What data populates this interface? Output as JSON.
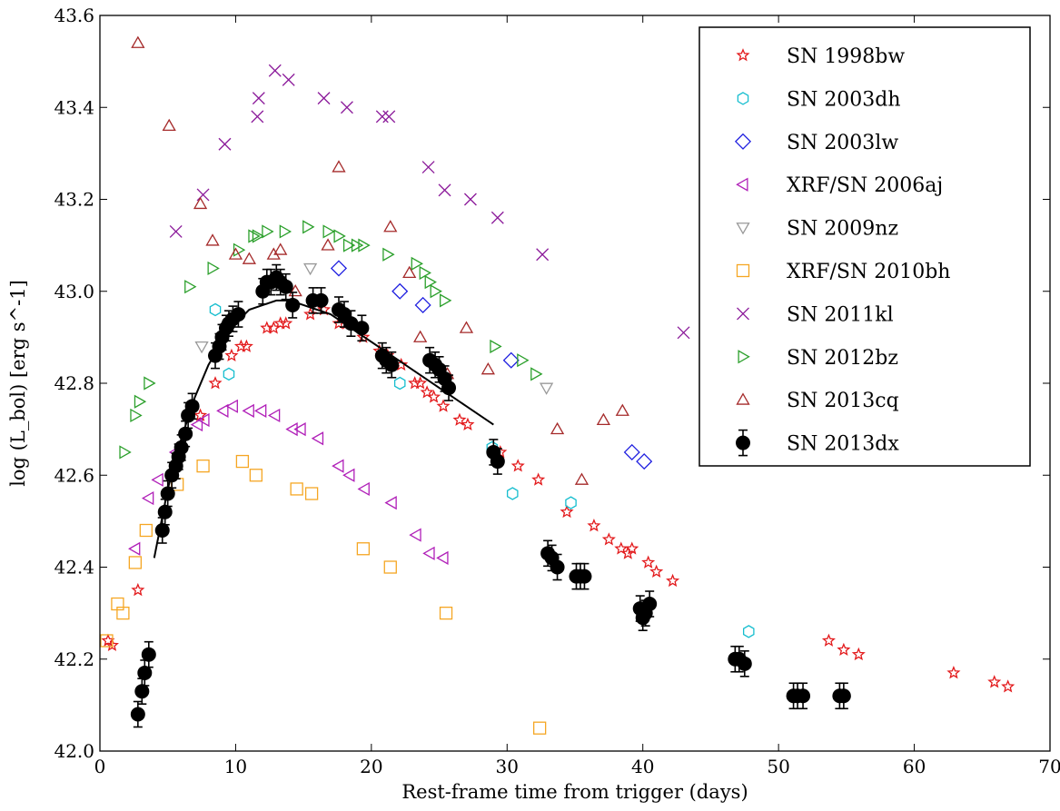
{
  "chart_data": {
    "type": "scatter",
    "title": "",
    "xlabel": "Rest-frame time from trigger (days)",
    "ylabel": "log (L_bol) [erg s^-1]",
    "xlim": [
      0,
      70
    ],
    "ylim": [
      42.0,
      43.6
    ],
    "xticks": [
      "0",
      "10",
      "20",
      "30",
      "40",
      "50",
      "60",
      "70"
    ],
    "yticks": [
      "42.0",
      "42.2",
      "42.4",
      "42.6",
      "42.8",
      "43.0",
      "43.2",
      "43.4",
      "43.6"
    ],
    "grid": false,
    "legend_position": "top-right",
    "series": [
      {
        "name": "SN 1998bw",
        "marker": "star",
        "color": "#e31a1c",
        "points": [
          [
            0.6,
            42.24
          ],
          [
            0.9,
            42.23
          ],
          [
            2.8,
            42.35
          ],
          [
            7.4,
            42.73
          ],
          [
            8.5,
            42.8
          ],
          [
            9.7,
            42.86
          ],
          [
            10.4,
            42.88
          ],
          [
            10.8,
            42.88
          ],
          [
            12.3,
            42.92
          ],
          [
            12.8,
            42.92
          ],
          [
            13.3,
            42.93
          ],
          [
            13.7,
            42.93
          ],
          [
            15.5,
            42.95
          ],
          [
            16.5,
            42.96
          ],
          [
            17.6,
            42.93
          ],
          [
            18.2,
            42.93
          ],
          [
            19.4,
            42.9
          ],
          [
            20.6,
            42.87
          ],
          [
            21.2,
            42.86
          ],
          [
            22.2,
            42.84
          ],
          [
            23.2,
            42.8
          ],
          [
            23.6,
            42.8
          ],
          [
            24.1,
            42.78
          ],
          [
            24.6,
            42.77
          ],
          [
            25.3,
            42.75
          ],
          [
            26.5,
            42.72
          ],
          [
            27.1,
            42.71
          ],
          [
            29.5,
            42.65
          ],
          [
            30.8,
            42.62
          ],
          [
            32.3,
            42.59
          ],
          [
            34.4,
            42.52
          ],
          [
            36.4,
            42.49
          ],
          [
            37.5,
            42.46
          ],
          [
            38.4,
            42.44
          ],
          [
            38.9,
            42.43
          ],
          [
            39.2,
            42.44
          ],
          [
            40.4,
            42.41
          ],
          [
            41.0,
            42.39
          ],
          [
            42.2,
            42.37
          ],
          [
            53.7,
            42.24
          ],
          [
            54.8,
            42.22
          ],
          [
            55.9,
            42.21
          ],
          [
            62.9,
            42.17
          ],
          [
            65.9,
            42.15
          ],
          [
            66.9,
            42.14
          ]
        ]
      },
      {
        "name": "SN 2003dh",
        "marker": "hexagon",
        "color": "#17becf",
        "points": [
          [
            8.5,
            42.96
          ],
          [
            9.5,
            42.82
          ],
          [
            22.1,
            42.8
          ],
          [
            28.9,
            42.66
          ],
          [
            30.4,
            42.56
          ],
          [
            34.7,
            42.54
          ],
          [
            47.8,
            42.26
          ]
        ]
      },
      {
        "name": "SN 2003lw",
        "marker": "diamond",
        "color": "#1f1fe0",
        "points": [
          [
            17.6,
            43.05
          ],
          [
            22.1,
            43.0
          ],
          [
            23.8,
            42.97
          ],
          [
            30.3,
            42.85
          ],
          [
            39.2,
            42.65
          ],
          [
            40.1,
            42.63
          ]
        ]
      },
      {
        "name": "XRF/SN 2006aj",
        "marker": "triangle-left",
        "color": "#b01fb8",
        "points": [
          [
            2.6,
            42.44
          ],
          [
            3.6,
            42.55
          ],
          [
            4.3,
            42.59
          ],
          [
            5.6,
            42.65
          ],
          [
            7.2,
            42.71
          ],
          [
            7.7,
            42.72
          ],
          [
            9.1,
            42.74
          ],
          [
            9.8,
            42.75
          ],
          [
            11.0,
            42.74
          ],
          [
            11.9,
            42.74
          ],
          [
            12.9,
            42.73
          ],
          [
            14.2,
            42.7
          ],
          [
            14.8,
            42.7
          ],
          [
            16.1,
            42.68
          ],
          [
            17.6,
            42.62
          ],
          [
            18.4,
            42.6
          ],
          [
            19.5,
            42.57
          ],
          [
            21.5,
            42.54
          ],
          [
            23.3,
            42.47
          ],
          [
            24.3,
            42.43
          ],
          [
            25.3,
            42.42
          ]
        ]
      },
      {
        "name": "SN 2009nz",
        "marker": "triangle-down",
        "color": "#999999",
        "points": [
          [
            7.5,
            42.88
          ],
          [
            15.5,
            43.05
          ],
          [
            32.9,
            42.79
          ]
        ]
      },
      {
        "name": "XRF/SN 2010bh",
        "marker": "square",
        "color": "#f5a623",
        "points": [
          [
            0.5,
            42.24
          ],
          [
            1.3,
            42.32
          ],
          [
            1.7,
            42.3
          ],
          [
            2.6,
            42.41
          ],
          [
            3.4,
            42.48
          ],
          [
            5.7,
            42.58
          ],
          [
            7.6,
            42.62
          ],
          [
            10.5,
            42.63
          ],
          [
            11.5,
            42.6
          ],
          [
            14.5,
            42.57
          ],
          [
            15.6,
            42.56
          ],
          [
            19.4,
            42.44
          ],
          [
            21.4,
            42.4
          ],
          [
            25.5,
            42.3
          ],
          [
            32.4,
            42.05
          ]
        ]
      },
      {
        "name": "SN 2011kl",
        "marker": "x",
        "color": "#8b1a9a",
        "points": [
          [
            5.6,
            43.13
          ],
          [
            7.6,
            43.21
          ],
          [
            9.2,
            43.32
          ],
          [
            11.6,
            43.38
          ],
          [
            11.7,
            43.42
          ],
          [
            12.9,
            43.48
          ],
          [
            13.9,
            43.46
          ],
          [
            16.5,
            43.42
          ],
          [
            18.2,
            43.4
          ],
          [
            20.8,
            43.38
          ],
          [
            21.3,
            43.38
          ],
          [
            24.2,
            43.27
          ],
          [
            25.4,
            43.22
          ],
          [
            27.3,
            43.2
          ],
          [
            29.3,
            43.16
          ],
          [
            32.6,
            43.08
          ],
          [
            43.0,
            42.91
          ]
        ]
      },
      {
        "name": "SN 2012bz",
        "marker": "triangle-right",
        "color": "#2ca02c",
        "points": [
          [
            1.8,
            42.65
          ],
          [
            2.6,
            42.73
          ],
          [
            2.9,
            42.76
          ],
          [
            3.6,
            42.8
          ],
          [
            6.6,
            43.01
          ],
          [
            8.3,
            43.05
          ],
          [
            10.2,
            43.09
          ],
          [
            11.3,
            43.12
          ],
          [
            11.6,
            43.12
          ],
          [
            12.3,
            43.13
          ],
          [
            13.6,
            43.13
          ],
          [
            15.3,
            43.14
          ],
          [
            16.8,
            43.13
          ],
          [
            17.6,
            43.12
          ],
          [
            18.3,
            43.1
          ],
          [
            18.9,
            43.1
          ],
          [
            19.4,
            43.1
          ],
          [
            21.2,
            43.08
          ],
          [
            23.3,
            43.06
          ],
          [
            23.9,
            43.04
          ],
          [
            24.3,
            43.02
          ],
          [
            24.7,
            43.0
          ],
          [
            25.4,
            42.98
          ],
          [
            29.1,
            42.88
          ],
          [
            31.1,
            42.85
          ],
          [
            32.1,
            42.82
          ]
        ]
      },
      {
        "name": "SN 2013cq",
        "marker": "triangle-up",
        "color": "#a52a2a",
        "points": [
          [
            2.8,
            43.54
          ],
          [
            5.1,
            43.36
          ],
          [
            7.4,
            43.19
          ],
          [
            8.3,
            43.11
          ],
          [
            10.0,
            43.08
          ],
          [
            11.0,
            43.07
          ],
          [
            12.8,
            43.08
          ],
          [
            13.3,
            43.09
          ],
          [
            14.4,
            43.0
          ],
          [
            16.8,
            43.1
          ],
          [
            17.6,
            43.27
          ],
          [
            21.4,
            43.14
          ],
          [
            22.8,
            43.04
          ],
          [
            23.6,
            42.9
          ],
          [
            25.6,
            42.82
          ],
          [
            27.0,
            42.92
          ],
          [
            28.6,
            42.83
          ],
          [
            33.7,
            42.7
          ],
          [
            35.5,
            42.59
          ],
          [
            37.1,
            42.72
          ],
          [
            38.5,
            42.74
          ]
        ]
      },
      {
        "name": "SN 2013dx",
        "marker": "circle-errorbar",
        "color": "#000000",
        "points": [
          [
            2.8,
            42.08
          ],
          [
            3.1,
            42.13
          ],
          [
            3.3,
            42.17
          ],
          [
            3.6,
            42.21
          ],
          [
            4.6,
            42.48
          ],
          [
            4.8,
            42.52
          ],
          [
            5.0,
            42.56
          ],
          [
            5.3,
            42.6
          ],
          [
            5.6,
            42.62
          ],
          [
            5.8,
            42.64
          ],
          [
            6.0,
            42.66
          ],
          [
            6.3,
            42.69
          ],
          [
            6.5,
            42.73
          ],
          [
            6.8,
            42.75
          ],
          [
            8.5,
            42.86
          ],
          [
            8.8,
            42.88
          ],
          [
            9.0,
            42.9
          ],
          [
            9.3,
            42.92
          ],
          [
            9.5,
            42.93
          ],
          [
            9.8,
            42.94
          ],
          [
            10.2,
            42.95
          ],
          [
            12.0,
            43.0
          ],
          [
            12.3,
            43.02
          ],
          [
            12.6,
            43.02
          ],
          [
            13.0,
            43.03
          ],
          [
            13.3,
            43.02
          ],
          [
            13.7,
            43.01
          ],
          [
            14.2,
            42.97
          ],
          [
            15.7,
            42.98
          ],
          [
            16.3,
            42.98
          ],
          [
            17.6,
            42.96
          ],
          [
            18.0,
            42.95
          ],
          [
            18.5,
            42.93
          ],
          [
            19.3,
            42.92
          ],
          [
            20.8,
            42.86
          ],
          [
            21.1,
            42.85
          ],
          [
            21.5,
            42.84
          ],
          [
            24.3,
            42.85
          ],
          [
            24.7,
            42.84
          ],
          [
            25.0,
            42.83
          ],
          [
            25.4,
            42.81
          ],
          [
            25.7,
            42.79
          ],
          [
            29.0,
            42.65
          ],
          [
            29.3,
            42.63
          ],
          [
            33.0,
            42.43
          ],
          [
            33.3,
            42.42
          ],
          [
            33.7,
            42.4
          ],
          [
            35.1,
            42.38
          ],
          [
            35.4,
            42.38
          ],
          [
            35.7,
            42.38
          ],
          [
            39.8,
            42.31
          ],
          [
            40.0,
            42.29
          ],
          [
            40.2,
            42.3
          ],
          [
            40.5,
            42.32
          ],
          [
            46.8,
            42.2
          ],
          [
            47.1,
            42.2
          ],
          [
            47.5,
            42.19
          ],
          [
            51.1,
            42.12
          ],
          [
            51.4,
            42.12
          ],
          [
            51.8,
            42.12
          ],
          [
            54.5,
            42.12
          ],
          [
            54.8,
            42.12
          ]
        ]
      }
    ],
    "fit_curve": {
      "color": "#000000",
      "points": [
        [
          4.0,
          42.42
        ],
        [
          5.0,
          42.57
        ],
        [
          6.0,
          42.68
        ],
        [
          7.0,
          42.77
        ],
        [
          8.0,
          42.84
        ],
        [
          9.0,
          42.89
        ],
        [
          10.0,
          42.93
        ],
        [
          11.0,
          42.96
        ],
        [
          12.0,
          42.97
        ],
        [
          13.0,
          42.98
        ],
        [
          14.0,
          42.98
        ],
        [
          15.0,
          42.97
        ],
        [
          16.0,
          42.96
        ],
        [
          17.0,
          42.95
        ],
        [
          18.0,
          42.93
        ],
        [
          19.0,
          42.91
        ],
        [
          20.0,
          42.89
        ],
        [
          21.0,
          42.87
        ],
        [
          22.0,
          42.85
        ],
        [
          23.0,
          42.83
        ],
        [
          24.0,
          42.81
        ],
        [
          25.0,
          42.79
        ],
        [
          26.0,
          42.77
        ],
        [
          27.0,
          42.75
        ],
        [
          28.0,
          42.73
        ],
        [
          29.0,
          42.71
        ]
      ]
    }
  }
}
